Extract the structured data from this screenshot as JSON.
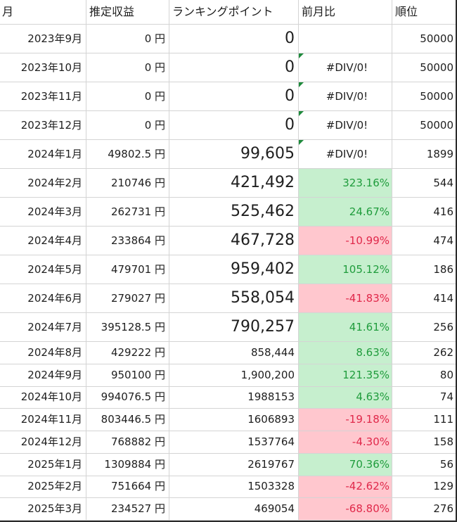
{
  "headers": {
    "month": "月",
    "revenue": "推定収益",
    "points": "ランキングポイント",
    "mom": "前月比",
    "rank": "順位"
  },
  "rows": [
    {
      "month": "2023年9月",
      "revenue": "0 円",
      "points": "0",
      "mom": "",
      "rank": "50000"
    },
    {
      "month": "2023年10月",
      "revenue": "0 円",
      "points": "0",
      "mom": "#DIV/0!",
      "rank": "50000"
    },
    {
      "month": "2023年11月",
      "revenue": "0 円",
      "points": "0",
      "mom": "#DIV/0!",
      "rank": "50000"
    },
    {
      "month": "2023年12月",
      "revenue": "0 円",
      "points": "0",
      "mom": "#DIV/0!",
      "rank": "50000"
    },
    {
      "month": "2024年1月",
      "revenue": "49802.5 円",
      "points": "99,605",
      "mom": "#DIV/0!",
      "rank": "1899"
    },
    {
      "month": "2024年2月",
      "revenue": "210746 円",
      "points": "421,492",
      "mom": "323.16%",
      "rank": "544"
    },
    {
      "month": "2024年3月",
      "revenue": "262731 円",
      "points": "525,462",
      "mom": "24.67%",
      "rank": "416"
    },
    {
      "month": "2024年4月",
      "revenue": "233864 円",
      "points": "467,728",
      "mom": "-10.99%",
      "rank": "474"
    },
    {
      "month": "2024年5月",
      "revenue": "479701 円",
      "points": "959,402",
      "mom": "105.12%",
      "rank": "186"
    },
    {
      "month": "2024年6月",
      "revenue": "279027 円",
      "points": "558,054",
      "mom": "-41.83%",
      "rank": "414"
    },
    {
      "month": "2024年7月",
      "revenue": "395128.5 円",
      "points": "790,257",
      "mom": "41.61%",
      "rank": "256"
    },
    {
      "month": "2024年8月",
      "revenue": "429222 円",
      "points": "858,444",
      "mom": "8.63%",
      "rank": "262"
    },
    {
      "month": "2024年9月",
      "revenue": "950100 円",
      "points": "1,900,200",
      "mom": "121.35%",
      "rank": "80"
    },
    {
      "month": "2024年10月",
      "revenue": "994076.5 円",
      "points": "1988153",
      "mom": "4.63%",
      "rank": "74"
    },
    {
      "month": "2024年11月",
      "revenue": "803446.5 円",
      "points": "1606893",
      "mom": "-19.18%",
      "rank": "111"
    },
    {
      "month": "2024年12月",
      "revenue": "768882 円",
      "points": "1537764",
      "mom": "-4.30%",
      "rank": "158"
    },
    {
      "month": "2025年1月",
      "revenue": "1309884 円",
      "points": "2619767",
      "mom": "70.36%",
      "rank": "56"
    },
    {
      "month": "2025年2月",
      "revenue": "751664 円",
      "points": "1503328",
      "mom": "-42.62%",
      "rank": "129"
    },
    {
      "month": "2025年3月",
      "revenue": "234527 円",
      "points": "469054",
      "mom": "-68.80%",
      "rank": "276"
    }
  ],
  "colors": {
    "positive_fill": "#c6efce",
    "positive_text": "#1f9c3c",
    "negative_fill": "#ffc7ce",
    "negative_text": "#e0284a",
    "gridline": "#d4d4d4",
    "error_indicator": "#1e8a3c"
  }
}
